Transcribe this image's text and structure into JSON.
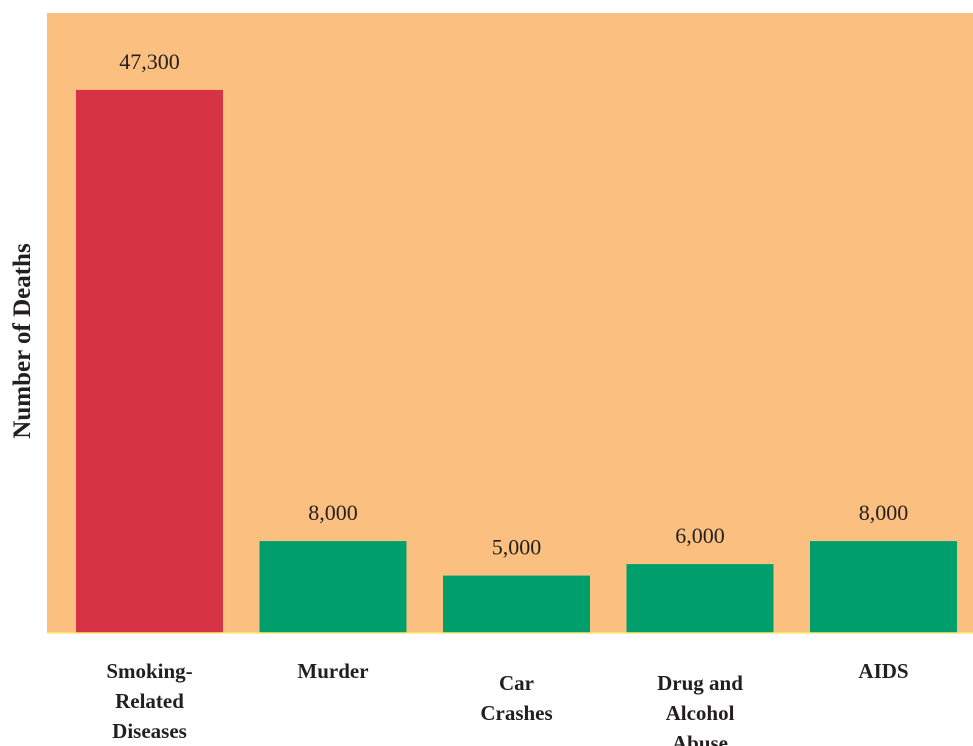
{
  "chart_data": {
    "type": "bar",
    "categories": [
      [
        "Smoking-",
        "Related",
        "Diseases"
      ],
      [
        "Murder"
      ],
      [
        "Car",
        "Crashes"
      ],
      [
        "Drug and",
        "Alcohol",
        "Abuse"
      ],
      [
        "AIDS"
      ]
    ],
    "values": [
      47300,
      8000,
      5000,
      6000,
      8000
    ],
    "value_labels": [
      "47,300",
      "8,000",
      "5,000",
      "6,000",
      "8,000"
    ],
    "title": "",
    "xlabel": "",
    "ylabel": "Number of Deaths",
    "ylim": [
      0,
      54000
    ],
    "grid": false,
    "legend": "none"
  },
  "colors": {
    "plot_background": "#fbc07f",
    "highlight_bar": "#d63445",
    "bar": "#009e6b",
    "baseline": "#ffe87a"
  }
}
